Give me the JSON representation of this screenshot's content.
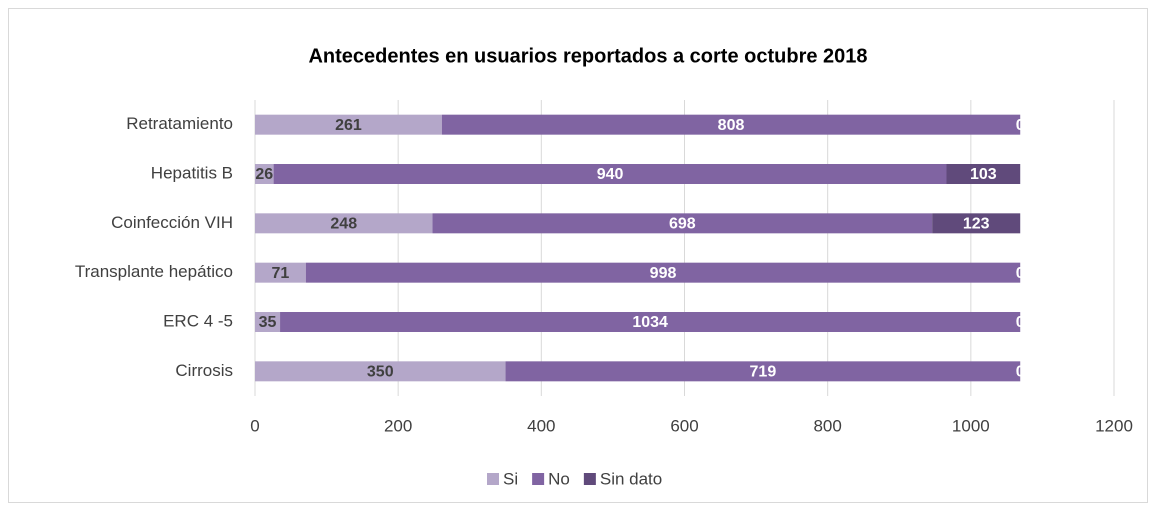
{
  "chart_data": {
    "type": "stacked-bar-horizontal",
    "title": "Antecedentes en usuarios reportados a corte octubre 2018",
    "categories": [
      "Retratamiento",
      "Hepatitis B",
      "Coinfección VIH",
      "Transplante hepático",
      "ERC 4 -5",
      "Cirrosis"
    ],
    "series": [
      {
        "name": "Si",
        "color": "#b4a7c9",
        "values": [
          261,
          26,
          248,
          71,
          35,
          350
        ]
      },
      {
        "name": "No",
        "color": "#8064a2",
        "values": [
          808,
          940,
          698,
          998,
          1034,
          719
        ]
      },
      {
        "name": "Sin dato",
        "color": "#604a7b",
        "values": [
          0,
          103,
          123,
          0,
          0,
          0
        ]
      }
    ],
    "xlim": [
      0,
      1200
    ],
    "xticks": [
      0,
      200,
      400,
      600,
      800,
      1000,
      1200
    ],
    "grid": true,
    "legend": "bottom"
  }
}
